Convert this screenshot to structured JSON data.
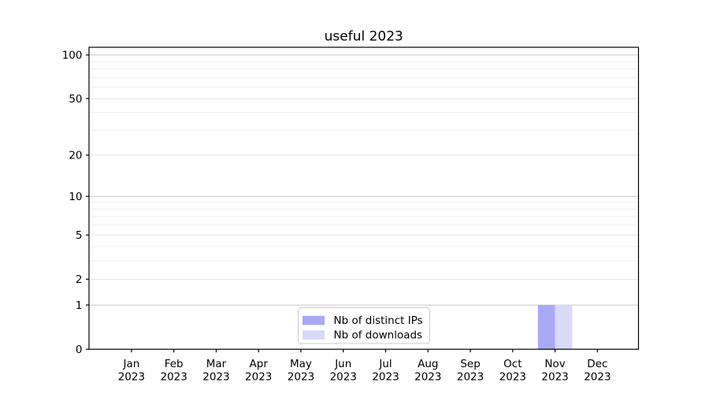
{
  "chart_data": {
    "type": "bar",
    "title": "useful 2023",
    "categories": [
      "Jan 2023",
      "Feb 2023",
      "Mar 2023",
      "Apr 2023",
      "May 2023",
      "Jun 2023",
      "Jul 2023",
      "Aug 2023",
      "Sep 2023",
      "Oct 2023",
      "Nov 2023",
      "Dec 2023"
    ],
    "series": [
      {
        "name": "Nb of distinct IPs",
        "color": "#a9a9f7",
        "values": [
          0,
          0,
          0,
          0,
          0,
          0,
          0,
          0,
          0,
          0,
          1,
          0
        ]
      },
      {
        "name": "Nb of downloads",
        "color": "#d9d9fa",
        "values": [
          0,
          0,
          0,
          0,
          0,
          0,
          0,
          0,
          0,
          0,
          1,
          0
        ]
      }
    ],
    "xlabel": "",
    "ylabel": "",
    "y_scale": "log(value+1)",
    "ylim": [
      0,
      113
    ],
    "y_ticks": [
      100,
      50,
      20,
      10,
      5,
      2,
      1,
      0
    ],
    "y_major_gridlines": [
      1,
      10,
      100
    ],
    "y_labeled_gridlines": [
      2,
      5,
      20,
      50
    ],
    "y_minor_gridlines": [
      3,
      4,
      6,
      7,
      8,
      9,
      30,
      40,
      60,
      70,
      80,
      90
    ],
    "grid": "horizontal",
    "legend": {
      "position": "inside-bottom-center",
      "entries": [
        "Nb of distinct IPs",
        "Nb of downloads"
      ]
    },
    "colors": {
      "axis": "#000000",
      "gridline_major": "#c9c9c9",
      "gridline_labeled": "#e3e3e3",
      "gridline_minor": "#f0f0f0",
      "legend_border": "#cccccc",
      "background": "#ffffff"
    }
  }
}
